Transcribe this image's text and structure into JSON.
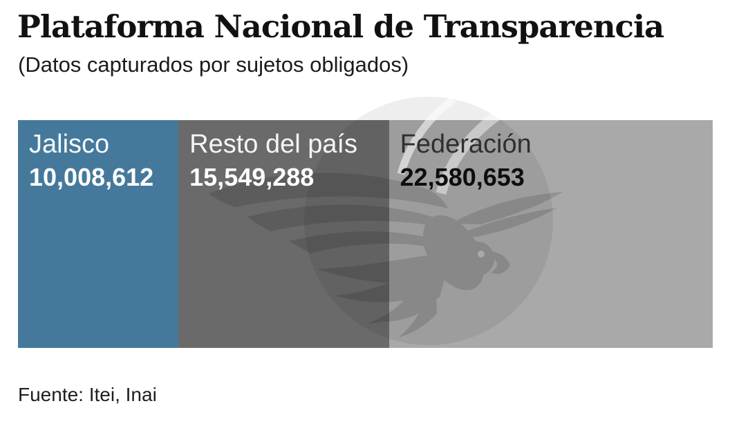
{
  "header": {
    "title": "Plataforma Nacional de Transparencia",
    "subtitle": "(Datos capturados por sujetos obligados)"
  },
  "footer": {
    "source": "Fuente: Itei, Inai"
  },
  "colors": {
    "background": "#ffffff",
    "title_text": "#111111",
    "subtitle_text": "#1b1b1b",
    "source_text": "#1e1e1e",
    "jalisco_blue": "#45799c",
    "resto_dark_gray": "#6a6a6a",
    "federacion_light_gray": "#a9a9a9",
    "watermark_tint": "#000000"
  },
  "watermark": {
    "icon": "informador-eagle-globe-watermark",
    "description": "faded engraved eagle flying over a globe"
  },
  "chart_data": {
    "type": "bar",
    "variant": "proportional-stacked-single-bar",
    "orientation": "horizontal",
    "title": "Plataforma Nacional de Transparencia",
    "subtitle": "(Datos capturados por sujetos obligados)",
    "source": "Fuente: Itei, Inai",
    "axes": "none",
    "grid": false,
    "legend_position": "labels-inside-segments",
    "total": 48138553,
    "segments": [
      {
        "label": "Jalisco",
        "value": 10008612,
        "value_text": "10,008,612",
        "share_pct": 20.8,
        "render_width_pct": 23.1,
        "color": "#45799c",
        "label_color": "#f5f8fa",
        "value_color": "#ffffff"
      },
      {
        "label": "Resto del país",
        "value": 15549288,
        "value_text": "15,549,288",
        "share_pct": 32.3,
        "render_width_pct": 30.3,
        "color": "#6a6a6a",
        "label_color": "#f5f5f5",
        "value_color": "#ffffff"
      },
      {
        "label": "Federación",
        "value": 22580653,
        "value_text": "22,580,653",
        "share_pct": 46.9,
        "render_width_pct": 46.6,
        "color": "#a9a9a9",
        "label_color": "#2f2f2f",
        "value_color": "#0e0e0e"
      }
    ]
  }
}
